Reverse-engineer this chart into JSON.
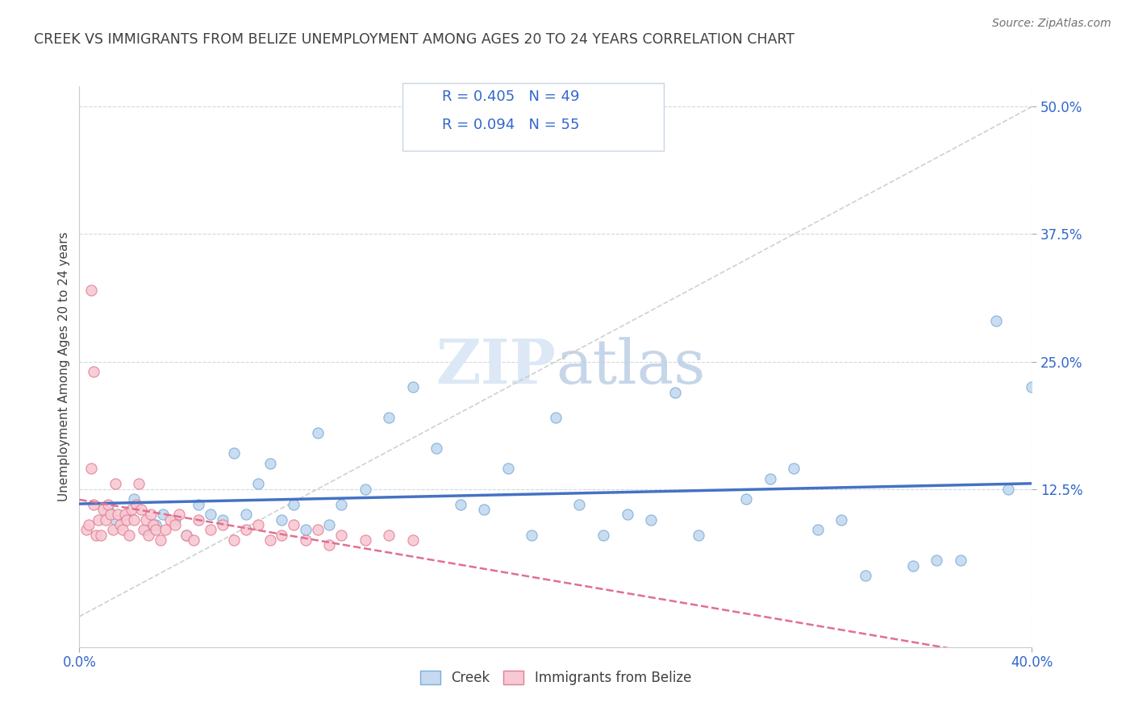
{
  "title": "CREEK VS IMMIGRANTS FROM BELIZE UNEMPLOYMENT AMONG AGES 20 TO 24 YEARS CORRELATION CHART",
  "source": "Source: ZipAtlas.com",
  "ylabel": "Unemployment Among Ages 20 to 24 years",
  "ytick_labels": [
    "50.0%",
    "37.5%",
    "25.0%",
    "12.5%"
  ],
  "ytick_values": [
    50.0,
    37.5,
    25.0,
    12.5
  ],
  "xlim": [
    0.0,
    40.0
  ],
  "ylim": [
    -3.0,
    52.0
  ],
  "legend_label1": "Creek",
  "legend_label2": "Immigrants from Belize",
  "r1_text": "R = 0.405",
  "n1_text": "N = 49",
  "r2_text": "R = 0.094",
  "n2_text": "N = 55",
  "color_creek_fill": "#c5d9f0",
  "color_creek_edge": "#7aaed6",
  "color_belize_fill": "#f8c8d4",
  "color_belize_edge": "#e08090",
  "color_creek_line": "#4472c4",
  "color_belize_line": "#e07090",
  "color_diag": "#c8c8c8",
  "background_color": "#ffffff",
  "title_color": "#404040",
  "legend_value_color": "#3366cc",
  "watermark_color": "#dce8f5",
  "grid_color": "#d0d8e4",
  "creek_x": [
    1.2,
    1.5,
    2.0,
    2.3,
    2.8,
    3.2,
    3.5,
    4.0,
    4.5,
    5.0,
    5.5,
    6.0,
    6.5,
    7.0,
    7.5,
    8.0,
    8.5,
    9.0,
    9.5,
    10.0,
    10.5,
    11.0,
    12.0,
    13.0,
    14.0,
    15.0,
    16.0,
    17.0,
    18.0,
    19.0,
    20.0,
    21.0,
    22.0,
    23.0,
    24.0,
    25.0,
    26.0,
    28.0,
    29.0,
    30.0,
    31.0,
    32.0,
    33.0,
    35.0,
    36.0,
    37.0,
    38.5,
    39.0,
    40.0
  ],
  "creek_y": [
    10.5,
    9.5,
    10.0,
    11.5,
    8.5,
    9.0,
    10.0,
    9.5,
    8.0,
    11.0,
    10.0,
    9.5,
    16.0,
    10.0,
    13.0,
    15.0,
    9.5,
    11.0,
    8.5,
    18.0,
    9.0,
    11.0,
    12.5,
    19.5,
    22.5,
    16.5,
    11.0,
    10.5,
    14.5,
    8.0,
    19.5,
    11.0,
    8.0,
    10.0,
    9.5,
    22.0,
    8.0,
    11.5,
    13.5,
    14.5,
    8.5,
    9.5,
    4.0,
    5.0,
    5.5,
    5.5,
    29.0,
    12.5,
    22.5
  ],
  "belize_x": [
    0.3,
    0.4,
    0.5,
    0.6,
    0.7,
    0.8,
    0.9,
    1.0,
    1.1,
    1.2,
    1.3,
    1.4,
    1.5,
    1.6,
    1.7,
    1.8,
    1.9,
    2.0,
    2.1,
    2.2,
    2.3,
    2.4,
    2.5,
    2.6,
    2.7,
    2.8,
    2.9,
    3.0,
    3.1,
    3.2,
    3.4,
    3.6,
    3.8,
    4.0,
    4.2,
    4.5,
    4.8,
    5.0,
    5.5,
    6.0,
    6.5,
    7.0,
    7.5,
    8.0,
    8.5,
    9.0,
    9.5,
    10.0,
    10.5,
    11.0,
    12.0,
    13.0,
    14.0,
    0.5,
    0.6
  ],
  "belize_y": [
    8.5,
    9.0,
    14.5,
    11.0,
    8.0,
    9.5,
    8.0,
    10.5,
    9.5,
    11.0,
    10.0,
    8.5,
    13.0,
    10.0,
    9.0,
    8.5,
    10.0,
    9.5,
    8.0,
    10.5,
    9.5,
    11.0,
    13.0,
    10.5,
    8.5,
    9.5,
    8.0,
    10.0,
    9.0,
    8.5,
    7.5,
    8.5,
    9.5,
    9.0,
    10.0,
    8.0,
    7.5,
    9.5,
    8.5,
    9.0,
    7.5,
    8.5,
    9.0,
    7.5,
    8.0,
    9.0,
    7.5,
    8.5,
    7.0,
    8.0,
    7.5,
    8.0,
    7.5,
    32.0,
    24.0
  ]
}
